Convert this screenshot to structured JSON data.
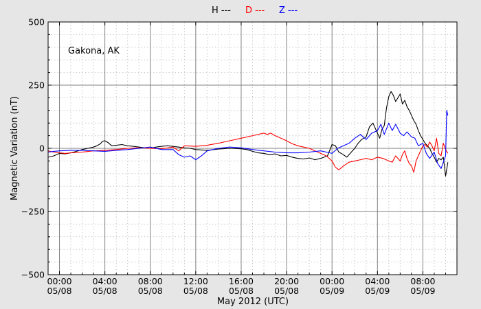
{
  "chart_data": {
    "type": "line",
    "title": "",
    "xlabel": "May 2012 (UTC)",
    "ylabel": "Magnetic Variation (nT)",
    "annotation": "Gakona, AK",
    "ylim": [
      -500,
      500
    ],
    "xlim_hours": [
      -1,
      35
    ],
    "grid": true,
    "legend_position": "top-center",
    "yticks": [
      {
        "value": 500,
        "label": "500"
      },
      {
        "value": 250,
        "label": "250"
      },
      {
        "value": 0,
        "label": "0"
      },
      {
        "value": -250,
        "label": "−250"
      },
      {
        "value": -500,
        "label": "−500"
      }
    ],
    "xticks": [
      {
        "hour": 0,
        "time": "00:00",
        "date": "05/08"
      },
      {
        "hour": 4,
        "time": "04:00",
        "date": "05/08"
      },
      {
        "hour": 8,
        "time": "08:00",
        "date": "05/08"
      },
      {
        "hour": 12,
        "time": "12:00",
        "date": "05/08"
      },
      {
        "hour": 16,
        "time": "16:00",
        "date": "05/08"
      },
      {
        "hour": 20,
        "time": "20:00",
        "date": "05/08"
      },
      {
        "hour": 24,
        "time": "00:00",
        "date": "05/09"
      },
      {
        "hour": 28,
        "time": "04:00",
        "date": "05/09"
      },
      {
        "hour": 32,
        "time": "08:00",
        "date": "05/09"
      }
    ],
    "series": [
      {
        "name": "H ---",
        "color": "#000000",
        "x": [
          -1.0,
          -0.5,
          0.0,
          0.5,
          1.0,
          1.5,
          2.0,
          2.5,
          3.0,
          3.3,
          3.6,
          3.8,
          4.0,
          4.3,
          4.6,
          5.0,
          5.5,
          6.0,
          6.5,
          7.0,
          7.5,
          8.0,
          8.5,
          9.0,
          9.5,
          10.0,
          10.5,
          11.0,
          11.5,
          12.0,
          13.0,
          14.0,
          15.0,
          16.0,
          16.5,
          17.0,
          17.5,
          18.0,
          18.5,
          19.0,
          19.5,
          20.0,
          20.5,
          21.0,
          21.5,
          22.0,
          22.5,
          23.0,
          23.3,
          23.6,
          24.0,
          24.3,
          24.6,
          25.0,
          25.3,
          25.6,
          26.0,
          26.3,
          26.6,
          27.0,
          27.3,
          27.6,
          28.0,
          28.2,
          28.4,
          28.6,
          28.8,
          29.0,
          29.2,
          29.4,
          29.6,
          29.8,
          30.0,
          30.2,
          30.4,
          30.6,
          30.8,
          31.0,
          31.2,
          31.4,
          31.6,
          31.8,
          32.0,
          32.2,
          32.4,
          32.6,
          32.8,
          33.0,
          33.2,
          33.4,
          33.6,
          33.8,
          34.0,
          34.2
        ],
        "values": [
          -35,
          -30,
          -20,
          -22,
          -18,
          -12,
          -5,
          0,
          5,
          10,
          18,
          28,
          30,
          22,
          10,
          12,
          15,
          10,
          8,
          5,
          2,
          0,
          5,
          8,
          10,
          8,
          5,
          2,
          0,
          -5,
          -8,
          -3,
          0,
          -2,
          -5,
          -12,
          -18,
          -20,
          -25,
          -22,
          -30,
          -28,
          -35,
          -40,
          -42,
          -38,
          -45,
          -40,
          -35,
          -30,
          15,
          10,
          -15,
          -25,
          -35,
          -20,
          0,
          20,
          35,
          45,
          85,
          100,
          60,
          40,
          75,
          90,
          160,
          205,
          225,
          210,
          185,
          200,
          215,
          175,
          190,
          165,
          150,
          130,
          110,
          95,
          70,
          50,
          35,
          20,
          10,
          0,
          -20,
          -35,
          -55,
          -40,
          -45,
          -35,
          -110,
          -55
        ]
      },
      {
        "name": "D ---",
        "color": "#ff0000",
        "x": [
          -1.0,
          -0.5,
          0.0,
          0.5,
          1.0,
          2.0,
          3.0,
          4.0,
          5.0,
          6.0,
          7.0,
          8.0,
          9.0,
          10.0,
          10.5,
          11.0,
          12.0,
          13.0,
          14.0,
          15.0,
          16.0,
          17.0,
          18.0,
          18.3,
          18.6,
          19.0,
          19.5,
          20.0,
          20.5,
          21.0,
          21.5,
          22.0,
          22.5,
          23.0,
          23.5,
          24.0,
          24.3,
          24.6,
          25.0,
          25.5,
          26.0,
          26.5,
          27.0,
          27.5,
          28.0,
          28.5,
          29.0,
          29.3,
          29.6,
          30.0,
          30.2,
          30.4,
          30.6,
          30.8,
          31.0,
          31.2,
          31.4,
          31.6,
          31.8,
          32.0,
          32.2,
          32.4,
          32.6,
          32.8,
          33.0,
          33.2,
          33.4,
          33.6,
          33.8,
          34.0,
          34.2
        ],
        "values": [
          -10,
          -15,
          -18,
          -20,
          -18,
          -15,
          -10,
          -8,
          -5,
          0,
          2,
          0,
          -2,
          5,
          -10,
          10,
          8,
          12,
          20,
          30,
          40,
          50,
          60,
          55,
          60,
          50,
          40,
          30,
          18,
          10,
          5,
          0,
          -10,
          -20,
          -30,
          -50,
          -75,
          -85,
          -70,
          -55,
          -50,
          -45,
          -40,
          -45,
          -35,
          -40,
          -50,
          -55,
          -30,
          -50,
          -25,
          -10,
          -40,
          -60,
          -70,
          -95,
          -50,
          -30,
          -10,
          10,
          15,
          5,
          25,
          10,
          -10,
          40,
          -20,
          -30,
          20,
          -5,
          -20
        ]
      },
      {
        "name": "Z ---",
        "color": "#0000ff",
        "x": [
          -1.0,
          -0.5,
          0.0,
          1.0,
          2.0,
          3.0,
          4.0,
          5.0,
          6.0,
          7.0,
          8.0,
          9.0,
          10.0,
          10.5,
          11.0,
          11.5,
          12.0,
          12.5,
          13.0,
          14.0,
          15.0,
          16.0,
          17.0,
          18.0,
          19.0,
          20.0,
          21.0,
          22.0,
          23.0,
          23.5,
          24.0,
          24.5,
          25.0,
          25.5,
          26.0,
          26.5,
          27.0,
          27.5,
          28.0,
          28.3,
          28.6,
          29.0,
          29.3,
          29.6,
          30.0,
          30.3,
          30.6,
          31.0,
          31.3,
          31.6,
          32.0,
          32.3,
          32.6,
          33.0,
          33.3,
          33.6,
          34.0,
          34.1,
          34.2
        ],
        "values": [
          -15,
          -12,
          -10,
          -8,
          -8,
          -10,
          -12,
          -8,
          -5,
          0,
          5,
          -5,
          -5,
          -25,
          -35,
          -30,
          -45,
          -30,
          -10,
          0,
          5,
          2,
          -5,
          -10,
          -15,
          -18,
          -18,
          -15,
          -10,
          -15,
          -20,
          0,
          10,
          20,
          40,
          55,
          35,
          60,
          70,
          95,
          55,
          100,
          70,
          95,
          60,
          50,
          65,
          45,
          40,
          10,
          20,
          -20,
          -40,
          -15,
          -60,
          -80,
          -30,
          150,
          130
        ]
      }
    ]
  }
}
